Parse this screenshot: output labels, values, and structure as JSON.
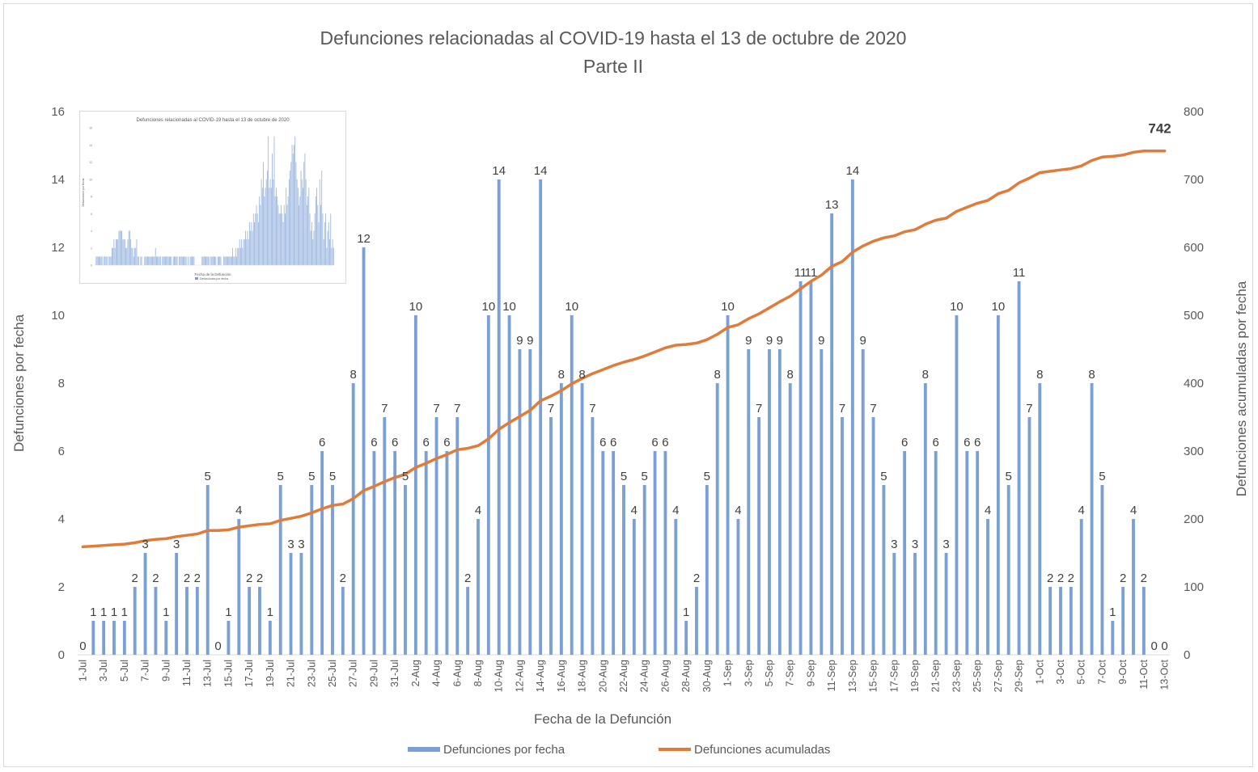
{
  "chart_data": {
    "type": "bar",
    "title": "Defunciones relacionadas al COVID-19 hasta el 13 de octubre de 2020",
    "subtitle": "Parte II",
    "xlabel": "Fecha de la Defunción",
    "ylabel": "Defunciones por fecha",
    "y2label": "Defunciones acumuladas por fecha",
    "ylim": [
      0,
      16
    ],
    "y2lim": [
      0,
      800
    ],
    "yticks": [
      "0",
      "2",
      "4",
      "6",
      "8",
      "10",
      "12",
      "14",
      "16"
    ],
    "y2ticks": [
      "0",
      "100",
      "200",
      "300",
      "400",
      "500",
      "600",
      "700",
      "800"
    ],
    "grid": false,
    "legend_position": "bottom",
    "colors": {
      "bar": "#7ba0d6",
      "line": "#e07b39"
    },
    "categories": [
      "1-Jul",
      "2-Jul",
      "3-Jul",
      "4-Jul",
      "5-Jul",
      "6-Jul",
      "7-Jul",
      "8-Jul",
      "9-Jul",
      "10-Jul",
      "11-Jul",
      "12-Jul",
      "13-Jul",
      "14-Jul",
      "15-Jul",
      "16-Jul",
      "17-Jul",
      "18-Jul",
      "19-Jul",
      "20-Jul",
      "21-Jul",
      "22-Jul",
      "23-Jul",
      "24-Jul",
      "25-Jul",
      "26-Jul",
      "27-Jul",
      "28-Jul",
      "29-Jul",
      "30-Jul",
      "31-Jul",
      "1-Aug",
      "2-Aug",
      "3-Aug",
      "4-Aug",
      "5-Aug",
      "6-Aug",
      "7-Aug",
      "8-Aug",
      "9-Aug",
      "10-Aug",
      "11-Aug",
      "12-Aug",
      "13-Aug",
      "14-Aug",
      "15-Aug",
      "16-Aug",
      "17-Aug",
      "18-Aug",
      "19-Aug",
      "20-Aug",
      "21-Aug",
      "22-Aug",
      "23-Aug",
      "24-Aug",
      "25-Aug",
      "26-Aug",
      "27-Aug",
      "28-Aug",
      "29-Aug",
      "30-Aug",
      "31-Aug",
      "1-Sep",
      "2-Sep",
      "3-Sep",
      "4-Sep",
      "5-Sep",
      "6-Sep",
      "7-Sep",
      "8-Sep",
      "9-Sep",
      "10-Sep",
      "11-Sep",
      "12-Sep",
      "13-Sep",
      "14-Sep",
      "15-Sep",
      "16-Sep",
      "17-Sep",
      "18-Sep",
      "19-Sep",
      "20-Sep",
      "21-Sep",
      "22-Sep",
      "23-Sep",
      "24-Sep",
      "25-Sep",
      "26-Sep",
      "27-Sep",
      "28-Sep",
      "29-Sep",
      "30-Sep",
      "1-Oct",
      "2-Oct",
      "3-Oct",
      "4-Oct",
      "5-Oct",
      "6-Oct",
      "7-Oct",
      "8-Oct",
      "9-Oct",
      "10-Oct",
      "11-Oct",
      "12-Oct",
      "13-Oct"
    ],
    "series": [
      {
        "name": "Defunciones por fecha",
        "type": "bar",
        "axis": "left",
        "values": [
          0,
          1,
          1,
          1,
          1,
          2,
          3,
          2,
          1,
          3,
          2,
          2,
          5,
          0,
          1,
          4,
          2,
          2,
          1,
          5,
          3,
          3,
          5,
          6,
          5,
          2,
          8,
          12,
          6,
          7,
          6,
          5,
          10,
          6,
          7,
          6,
          7,
          2,
          4,
          10,
          14,
          10,
          9,
          9,
          14,
          7,
          8,
          10,
          8,
          7,
          6,
          6,
          5,
          4,
          5,
          6,
          6,
          4,
          1,
          2,
          5,
          8,
          10,
          4,
          9,
          7,
          9,
          9,
          8,
          11,
          11,
          9,
          13,
          7,
          14,
          9,
          7,
          5,
          3,
          6,
          3,
          8,
          6,
          3,
          10,
          6,
          6,
          4,
          10,
          5,
          11,
          7,
          8,
          2,
          2,
          2,
          4,
          8,
          5,
          1,
          2,
          4,
          2,
          0,
          0
        ]
      },
      {
        "name": "Defunciones acumuladas",
        "type": "line",
        "axis": "right",
        "values": [
          159,
          160,
          161,
          162,
          163,
          165,
          168,
          170,
          171,
          174,
          176,
          178,
          183,
          183,
          184,
          188,
          190,
          192,
          193,
          198,
          201,
          204,
          209,
          215,
          220,
          222,
          230,
          242,
          248,
          255,
          261,
          266,
          276,
          282,
          289,
          295,
          302,
          304,
          308,
          318,
          332,
          342,
          351,
          360,
          374,
          381,
          389,
          399,
          407,
          414,
          420,
          426,
          431,
          435,
          440,
          446,
          452,
          456,
          457,
          459,
          464,
          472,
          482,
          486,
          495,
          502,
          511,
          520,
          528,
          539,
          550,
          559,
          572,
          579,
          593,
          602,
          609,
          614,
          617,
          623,
          626,
          634,
          640,
          643,
          653,
          659,
          665,
          669,
          679,
          684,
          695,
          702,
          710,
          712,
          714,
          716,
          720,
          728,
          733,
          734,
          736,
          740,
          742,
          742,
          742
        ]
      }
    ],
    "data_labels": [
      "0",
      "1",
      "1",
      "1",
      "1",
      "2",
      "3",
      "2",
      "1",
      "3",
      "2",
      "2",
      "5",
      "0",
      "1",
      "4",
      "2",
      "2",
      "1",
      "5",
      "3",
      "3",
      "5",
      "6",
      "5",
      "2",
      "8",
      "12",
      "6",
      "7",
      "6",
      "5",
      "10",
      "6",
      "7",
      "6",
      "7",
      "2",
      "4",
      "10",
      "14",
      "10",
      "9",
      "9",
      "14",
      "7",
      "8",
      "10",
      "8",
      "7",
      "6",
      "6",
      "5",
      "4",
      "5",
      "6",
      "6",
      "4",
      "1",
      "2",
      "5",
      "8",
      "10",
      "4",
      "9",
      "7",
      "9",
      "9",
      "8",
      "11",
      "11",
      "9",
      "13",
      "7",
      "14",
      "9",
      "7",
      "5",
      "3",
      "6",
      "3",
      "8",
      "6",
      "3",
      "10",
      "6",
      "6",
      "4",
      "10",
      "5",
      "11",
      "7",
      "8",
      "2",
      "2",
      "2",
      "4",
      "8",
      "5",
      "1",
      "2",
      "4",
      "2",
      "0",
      "0"
    ],
    "end_label": "742"
  },
  "legend": {
    "bar_label": "Defunciones por fecha",
    "line_label": "Defunciones acumuladas"
  },
  "inset": {
    "title": "Defunciones relacionadas al COVID-19 hasta el 13 de octubre de 2020",
    "xlabel": "Fecha de la Defunción",
    "legend_label": "Defunciones por fecha",
    "ylabel": "Defunciones por fecha",
    "ylim": [
      0,
      16
    ],
    "values": [
      0,
      1,
      1,
      1,
      1,
      1,
      1,
      1,
      0,
      1,
      1,
      1,
      1,
      0,
      1,
      1,
      1,
      2,
      2,
      3,
      2,
      3,
      3,
      3,
      4,
      4,
      4,
      4,
      3,
      3,
      3,
      2,
      2,
      3,
      4,
      4,
      3,
      2,
      2,
      1,
      2,
      2,
      3,
      1,
      1,
      0,
      1,
      1,
      0,
      0,
      1,
      1,
      1,
      1,
      1,
      1,
      1,
      1,
      1,
      1,
      1,
      2,
      1,
      1,
      1,
      1,
      1,
      0,
      1,
      1,
      1,
      1,
      1,
      1,
      1,
      1,
      1,
      1,
      0,
      1,
      1,
      1,
      1,
      1,
      0,
      1,
      1,
      1,
      1,
      1,
      1,
      1,
      1,
      0,
      1,
      0,
      1,
      1,
      1,
      1,
      1,
      0,
      0,
      0,
      0,
      0,
      0,
      0,
      1,
      1,
      1,
      1,
      1,
      1,
      1,
      1,
      0,
      1,
      1,
      1,
      1,
      1,
      1,
      0,
      1,
      1,
      1,
      1,
      0,
      0,
      1,
      1,
      1,
      1,
      1,
      1,
      1,
      1,
      1,
      2,
      1,
      1,
      2,
      1,
      2,
      2,
      3,
      2,
      3,
      2,
      3,
      3,
      4,
      3,
      4,
      3,
      5,
      4,
      5,
      4,
      6,
      5,
      6,
      7,
      6,
      5,
      8,
      7,
      10,
      9,
      12,
      8,
      9,
      10,
      11,
      15,
      9,
      10,
      9,
      13,
      10,
      15,
      8,
      9,
      8,
      7,
      6,
      6,
      7,
      6,
      5,
      7,
      6,
      9,
      7,
      8,
      10,
      11,
      12,
      14,
      13,
      14,
      15,
      12,
      10,
      9,
      7,
      8,
      11,
      10,
      9,
      12,
      13,
      10,
      7,
      8,
      9,
      6,
      4,
      5,
      3,
      4,
      6,
      8,
      9,
      7,
      5,
      10,
      7,
      11,
      6,
      3,
      5,
      6,
      2,
      4,
      5,
      3,
      6,
      2,
      3,
      2
    ]
  }
}
